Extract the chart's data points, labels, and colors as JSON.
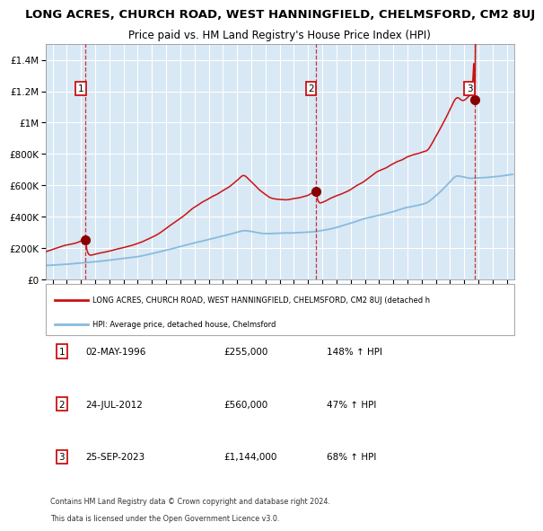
{
  "title": "LONG ACRES, CHURCH ROAD, WEST HANNINGFIELD, CHELMSFORD, CM2 8UJ",
  "subtitle": "Price paid vs. HM Land Registry's House Price Index (HPI)",
  "title_fontsize": 9.5,
  "subtitle_fontsize": 8.5,
  "plot_bg_color": "#d8e8f4",
  "grid_color": "#ffffff",
  "hpi_color": "#88bbdd",
  "price_color": "#cc1111",
  "ylim": [
    0,
    1500000
  ],
  "yticks": [
    0,
    200000,
    400000,
    600000,
    800000,
    1000000,
    1200000,
    1400000
  ],
  "ytick_labels": [
    "£0",
    "£200K",
    "£400K",
    "£600K",
    "£800K",
    "£1M",
    "£1.2M",
    "£1.4M"
  ],
  "xstart": 1993.5,
  "xend": 2026.5,
  "purchase_dates": [
    1996.33,
    2012.56,
    2023.73
  ],
  "purchase_prices": [
    255000,
    560000,
    1144000
  ],
  "purchase_labels": [
    "1",
    "2",
    "3"
  ],
  "legend_line1": "LONG ACRES, CHURCH ROAD, WEST HANNINGFIELD, CHELMSFORD, CM2 8UJ (detached h",
  "legend_line2": "HPI: Average price, detached house, Chelmsford",
  "table_rows": [
    [
      "1",
      "02-MAY-1996",
      "£255,000",
      "148% ↑ HPI"
    ],
    [
      "2",
      "24-JUL-2012",
      "£560,000",
      "47% ↑ HPI"
    ],
    [
      "3",
      "25-SEP-2023",
      "£1,144,000",
      "68% ↑ HPI"
    ]
  ],
  "footnote1": "Contains HM Land Registry data © Crown copyright and database right 2024.",
  "footnote2": "This data is licensed under the Open Government Licence v3.0."
}
